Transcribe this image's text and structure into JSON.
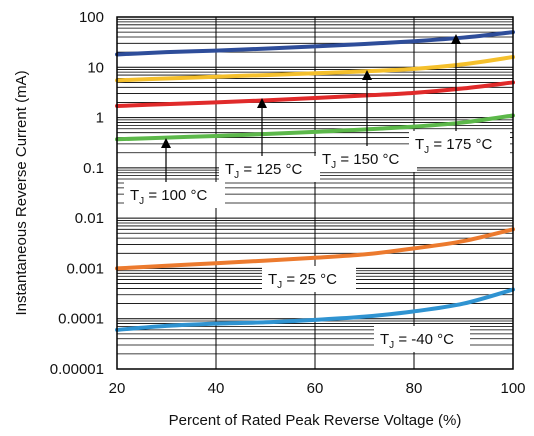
{
  "chart_data": {
    "type": "line",
    "xlabel": "Percent of Rated Peak Reverse Voltage (%)",
    "ylabel": "Instantaneous Reverse Current (mA)",
    "xlim": [
      20,
      100
    ],
    "ylim": [
      1e-05,
      100
    ],
    "y_scale": "log",
    "grid": true,
    "x_ticks": [
      "20",
      "40",
      "60",
      "80",
      "100"
    ],
    "y_ticks": [
      "100",
      "10",
      "1",
      "0.1",
      "0.01",
      "0.001",
      "0.0001",
      "0.00001"
    ],
    "series": [
      {
        "name": "T_J = 175 °C",
        "color": "#2e4d9a",
        "x": [
          20,
          30,
          40,
          50,
          60,
          70,
          80,
          90,
          100
        ],
        "y": [
          18,
          20,
          21.5,
          23.5,
          26,
          29,
          33,
          39,
          50
        ]
      },
      {
        "name": "T_J = 150 °C",
        "color": "#f5c02c",
        "x": [
          20,
          30,
          40,
          50,
          60,
          70,
          80,
          90,
          100
        ],
        "y": [
          5.5,
          6,
          6.5,
          7,
          7.6,
          8.3,
          9.3,
          11.5,
          16
        ]
      },
      {
        "name": "T_J = 125 °C",
        "color": "#e02a2a",
        "x": [
          20,
          30,
          40,
          50,
          60,
          70,
          80,
          90,
          100
        ],
        "y": [
          1.7,
          1.85,
          2,
          2.2,
          2.45,
          2.75,
          3.1,
          3.8,
          5
        ]
      },
      {
        "name": "T_J = 100 °C",
        "color": "#5cb84a",
        "x": [
          20,
          30,
          40,
          50,
          60,
          70,
          80,
          90,
          100
        ],
        "y": [
          0.37,
          0.4,
          0.43,
          0.47,
          0.52,
          0.58,
          0.66,
          0.8,
          1.1
        ]
      },
      {
        "name": "T_J = 25 °C",
        "color": "#ec7a2e",
        "x": [
          20,
          30,
          40,
          50,
          60,
          70,
          80,
          90,
          100
        ],
        "y": [
          0.001,
          0.00113,
          0.00127,
          0.00143,
          0.00163,
          0.0019,
          0.0025,
          0.0035,
          0.006
        ]
      },
      {
        "name": "T_J = -40 °C",
        "color": "#2f93d1",
        "x": [
          20,
          30,
          40,
          50,
          60,
          70,
          80,
          90,
          100
        ],
        "y": [
          6e-05,
          7.2e-05,
          8e-05,
          8.5e-05,
          9.5e-05,
          0.00011,
          0.00014,
          0.0002,
          0.00038
        ]
      }
    ],
    "annotations": [
      {
        "T": "T",
        "sub": "J",
        "rest": " = 175 °C",
        "arrow_x": 89
      },
      {
        "T": "T",
        "sub": "J",
        "rest": " = 150 °C",
        "arrow_x": 71
      },
      {
        "T": "T",
        "sub": "J",
        "rest": " = 125 °C",
        "arrow_x": 49.5
      },
      {
        "T": "T",
        "sub": "J",
        "rest": " = 100 °C",
        "arrow_x": 29.5
      },
      {
        "T": "T",
        "sub": "J",
        "rest": " = 25 °C",
        "arrow_x": null
      },
      {
        "T": "T",
        "sub": "J",
        "rest": " = -40 °C",
        "arrow_x": null
      }
    ]
  }
}
